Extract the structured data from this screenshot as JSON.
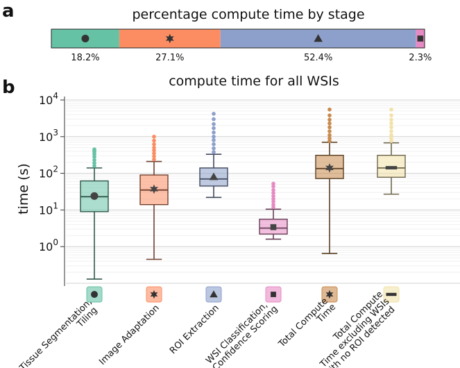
{
  "panel_a_letter": "a",
  "panel_b_letter": "b",
  "chart_data": [
    {
      "type": "bar",
      "subtype": "stacked-horizontal-100",
      "title": "percentage compute time by stage",
      "segments": [
        {
          "label": "18.2%",
          "value": 18.2,
          "color": "#66c2a5",
          "marker": "circle"
        },
        {
          "label": "27.1%",
          "value": 27.1,
          "color": "#fc8d62",
          "marker": "star"
        },
        {
          "label": "52.4%",
          "value": 52.4,
          "color": "#8da0cb",
          "marker": "triangle"
        },
        {
          "label": "2.3%",
          "value": 2.3,
          "color": "#e78ac3",
          "marker": "square"
        }
      ]
    },
    {
      "type": "box",
      "title": "compute time for all WSIs",
      "ylabel": "time (s)",
      "yscale": "log",
      "ylim": [
        0.1,
        10000
      ],
      "ytick_exponents": [
        "0",
        "1",
        "2",
        "3",
        "4"
      ],
      "ytick_base": "10",
      "categories": [
        {
          "label_lines": [
            "Tissue Segmentation,",
            "Tiling"
          ],
          "color": "#66c2a5",
          "marker": "circle",
          "whisker_low": 0.13,
          "q1": 9,
          "median": 23,
          "q3": 62,
          "whisker_high": 140,
          "mean": 24,
          "outliers": [
            160,
            190,
            230,
            280,
            330,
            380,
            420,
            450
          ]
        },
        {
          "label_lines": [
            "Image Adaptation"
          ],
          "color": "#fc8d62",
          "marker": "star",
          "whisker_low": 0.45,
          "q1": 14,
          "median": 35,
          "q3": 90,
          "whisker_high": 210,
          "mean": 37,
          "outliers": [
            240,
            290,
            350,
            420,
            500,
            620,
            780,
            1000
          ]
        },
        {
          "label_lines": [
            "ROI Extraction"
          ],
          "color": "#8da0cb",
          "marker": "triangle",
          "whisker_low": 22,
          "q1": 45,
          "median": 70,
          "q3": 140,
          "whisker_high": 330,
          "mean": 80,
          "outliers": [
            380,
            480,
            620,
            800,
            1000,
            1300,
            1700,
            2200,
            3000,
            4200
          ]
        },
        {
          "label_lines": [
            "WSI Classification,",
            "Confidence Scoring"
          ],
          "color": "#e78ac3",
          "marker": "square",
          "whisker_low": 1.6,
          "q1": 2.2,
          "median": 3.2,
          "q3": 5.6,
          "whisker_high": 10.5,
          "mean": 3.4,
          "outliers": [
            12,
            14,
            17,
            20,
            24,
            29,
            35,
            44,
            52
          ]
        },
        {
          "label_lines": [
            "Total Compute",
            "Time"
          ],
          "color": "#c98b4d",
          "marker": "star",
          "whisker_low": 0.65,
          "q1": 72,
          "median": 135,
          "q3": 310,
          "whisker_high": 700,
          "mean": 140,
          "outliers": [
            760,
            900,
            1100,
            1400,
            1800,
            2300,
            2900,
            3800,
            5500
          ]
        },
        {
          "label_lines": [
            "Total Compute",
            "Time excluding WSIs",
            "with no ROI detected"
          ],
          "color": "#f2e2a8",
          "marker": "dash",
          "whisker_low": 27,
          "q1": 78,
          "median": 140,
          "q3": 310,
          "whisker_high": 680,
          "mean": 142,
          "outliers": [
            760,
            900,
            1100,
            1400,
            1800,
            2300,
            2900,
            3800,
            5500
          ]
        }
      ]
    }
  ]
}
